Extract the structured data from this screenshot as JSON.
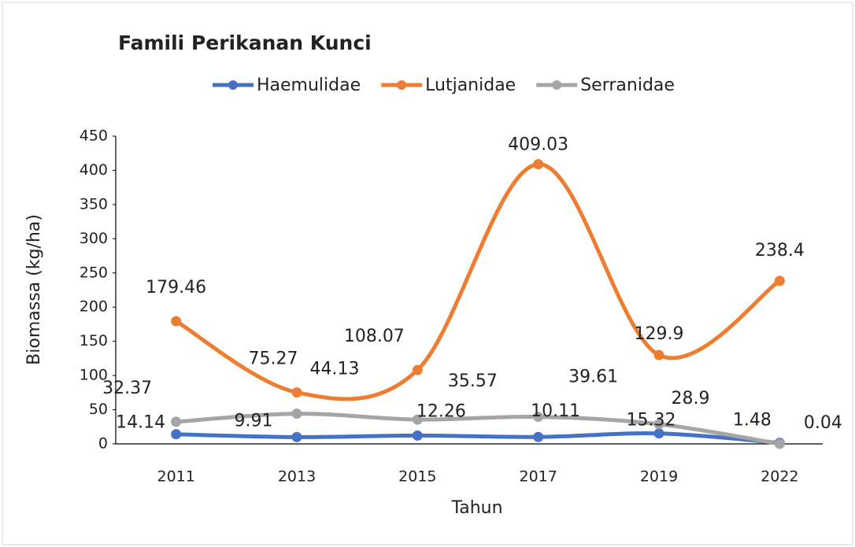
{
  "chart_data": {
    "type": "line",
    "title": "Famili Perikanan Kunci",
    "x_label": "Tahun",
    "y_label": "Biomassa (kg/ha)",
    "categories": [
      "2011",
      "2013",
      "2015",
      "2017",
      "2019",
      "2022"
    ],
    "series": [
      {
        "name": "Haemulidae",
        "color": "#4472c4",
        "values": [
          14.14,
          9.91,
          12.26,
          10.11,
          15.32,
          1.48
        ]
      },
      {
        "name": "Lutjanidae",
        "color": "#ed7d31",
        "values": [
          179.46,
          75.27,
          108.07,
          409.03,
          129.9,
          238.4
        ]
      },
      {
        "name": "Serranidae",
        "color": "#a5a5a5",
        "values": [
          32.37,
          44.13,
          35.57,
          39.61,
          28.9,
          0.04
        ]
      }
    ],
    "ylim": [
      0,
      450
    ],
    "yticks": [
      0,
      50,
      100,
      150,
      200,
      250,
      300,
      350,
      400,
      450
    ],
    "grid": false,
    "legend": "top",
    "smooth": true
  }
}
